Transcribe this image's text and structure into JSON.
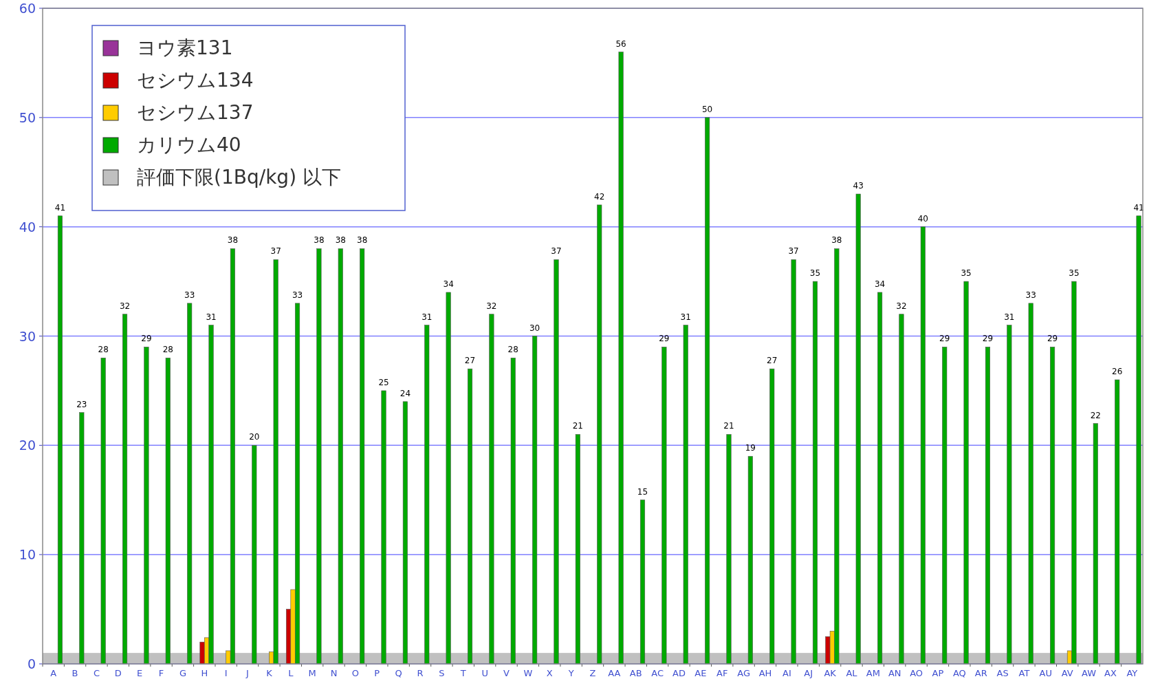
{
  "chart_data": {
    "type": "bar",
    "categories": [
      "A",
      "B",
      "C",
      "D",
      "E",
      "F",
      "G",
      "H",
      "I",
      "J",
      "K",
      "L",
      "M",
      "N",
      "O",
      "P",
      "Q",
      "R",
      "S",
      "T",
      "U",
      "V",
      "W",
      "X",
      "Y",
      "Z",
      "AA",
      "AB",
      "AC",
      "AD",
      "AE",
      "AF",
      "AG",
      "AH",
      "AI",
      "AJ",
      "AK",
      "AL",
      "AM",
      "AN",
      "AO",
      "AP",
      "AQ",
      "AR",
      "AS",
      "AT",
      "AU",
      "AV",
      "AW",
      "AX",
      "AY"
    ],
    "series": [
      {
        "name": "ヨウ素131",
        "color": "#993399",
        "values": [
          null,
          null,
          null,
          null,
          null,
          null,
          null,
          null,
          null,
          null,
          null,
          null,
          null,
          null,
          null,
          null,
          null,
          null,
          null,
          null,
          null,
          null,
          null,
          null,
          null,
          null,
          null,
          null,
          null,
          null,
          null,
          null,
          null,
          null,
          null,
          null,
          null,
          null,
          null,
          null,
          null,
          null,
          null,
          null,
          null,
          null,
          null,
          null,
          null,
          null,
          null
        ]
      },
      {
        "name": "セシウム134",
        "color": "#cc0000",
        "values": [
          null,
          null,
          null,
          null,
          null,
          null,
          null,
          2,
          null,
          null,
          null,
          5,
          null,
          null,
          null,
          null,
          null,
          null,
          null,
          null,
          null,
          null,
          null,
          null,
          null,
          null,
          null,
          null,
          null,
          null,
          null,
          null,
          null,
          null,
          null,
          null,
          2.5,
          null,
          null,
          null,
          null,
          null,
          null,
          null,
          null,
          null,
          null,
          null,
          null,
          null,
          null
        ]
      },
      {
        "name": "セシウム137",
        "color": "#ffcc00",
        "values": [
          null,
          null,
          null,
          null,
          null,
          null,
          null,
          2.4,
          1.2,
          null,
          1.1,
          6.8,
          null,
          null,
          null,
          null,
          null,
          null,
          null,
          null,
          null,
          null,
          null,
          null,
          null,
          null,
          null,
          null,
          null,
          null,
          null,
          null,
          null,
          null,
          null,
          null,
          3,
          null,
          null,
          null,
          null,
          null,
          null,
          null,
          null,
          null,
          null,
          1.2,
          null,
          null,
          null
        ]
      },
      {
        "name": "カリウム40",
        "color": "#00aa00",
        "values": [
          41,
          23,
          28,
          32,
          29,
          28,
          33,
          31,
          38,
          20,
          37,
          33,
          38,
          38,
          38,
          25,
          24,
          31,
          34,
          27,
          32,
          28,
          30,
          37,
          21,
          42,
          56,
          15,
          29,
          31,
          50,
          21,
          19,
          27,
          37,
          35,
          38,
          43,
          34,
          32,
          40,
          29,
          35,
          29,
          31,
          33,
          29,
          35,
          22,
          26,
          41
        ],
        "value_labels": [
          "41",
          "23",
          "28",
          "32",
          "29",
          "28",
          "33",
          "31",
          "38",
          "20",
          "37",
          "33",
          "38",
          "38",
          "38",
          "25",
          "24",
          "31",
          "34",
          "27",
          "32",
          "28",
          "30",
          "37",
          "21",
          "42",
          "56",
          "15",
          "29",
          "31",
          "50",
          "21",
          "19",
          "27",
          "37",
          "35",
          "38",
          "43",
          "34",
          "32",
          "40",
          "29",
          "35",
          "29",
          "31",
          "33",
          "29",
          "35",
          "22",
          "26",
          "41"
        ]
      }
    ],
    "bands": [
      {
        "axis": "y",
        "from": 0,
        "to": 1,
        "label": "評価下限(1Bq/kg) 以下",
        "color": "#c0c0c0"
      }
    ],
    "ylim": [
      0,
      60
    ],
    "yticks": [
      0,
      10,
      20,
      30,
      40,
      50,
      60
    ],
    "grid": "y",
    "legend": "top left"
  }
}
